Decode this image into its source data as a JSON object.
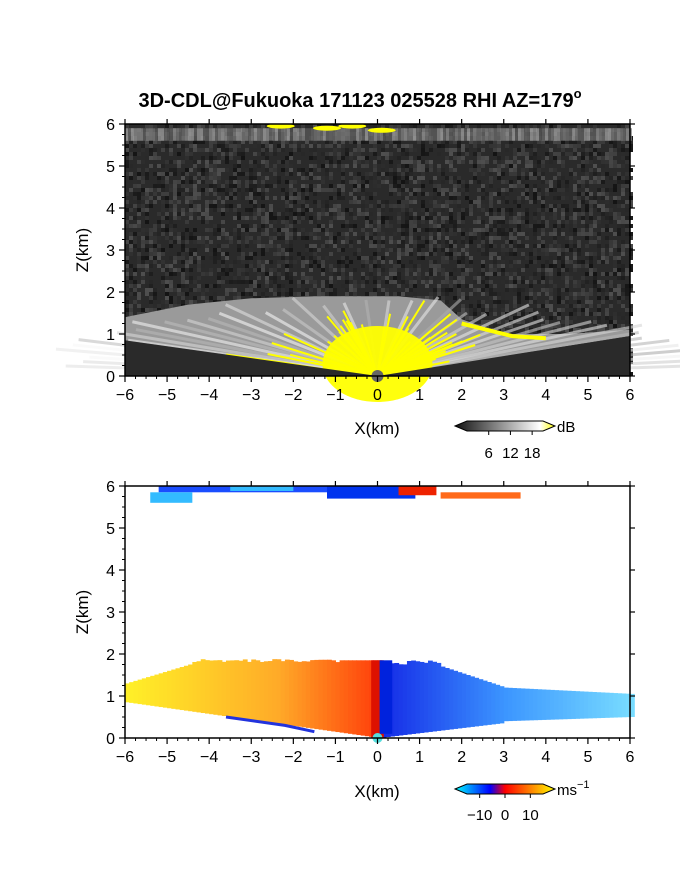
{
  "title": "3D-CDL@Fukuoka 171123 025528 RHI AZ=179",
  "title_superscript": "o",
  "chart_data": [
    {
      "type": "heatmap",
      "name": "intensity",
      "xlabel": "X(km)",
      "ylabel": "Z(km)",
      "xlim": [
        -6,
        6
      ],
      "ylim": [
        0,
        6
      ],
      "xticks": [
        -6,
        -5,
        -4,
        -3,
        -2,
        -1,
        0,
        1,
        2,
        3,
        4,
        5,
        6
      ],
      "yticks": [
        0,
        1,
        2,
        3,
        4,
        5,
        6
      ],
      "colorbar": {
        "unit": "dB",
        "ticks": [
          6,
          12,
          18
        ],
        "range": [
          0,
          21
        ],
        "colors": [
          "#111111",
          "#ffffff",
          "#ffff00"
        ]
      },
      "echo_top_km": 1.9,
      "noise_band_km": [
        5.6,
        5.9
      ],
      "saturated_color": "#ffff00"
    },
    {
      "type": "heatmap",
      "name": "velocity",
      "xlabel": "X(km)",
      "ylabel": "Z(km)",
      "xlim": [
        -6,
        6
      ],
      "ylim": [
        0,
        6
      ],
      "xticks": [
        -6,
        -5,
        -4,
        -3,
        -2,
        -1,
        0,
        1,
        2,
        3,
        4,
        5,
        6
      ],
      "yticks": [
        0,
        1,
        2,
        3,
        4,
        5,
        6
      ],
      "colorbar": {
        "unit": "ms",
        "unit_superscript": "-1",
        "ticks": [
          -10,
          0,
          10
        ],
        "range": [
          -15,
          15
        ],
        "colors": [
          "#00ffff",
          "#0000ff",
          "#ff0000",
          "#ffff00"
        ]
      },
      "top_band_km": [
        5.7,
        6.0
      ],
      "echo_top_km": 1.9
    }
  ]
}
